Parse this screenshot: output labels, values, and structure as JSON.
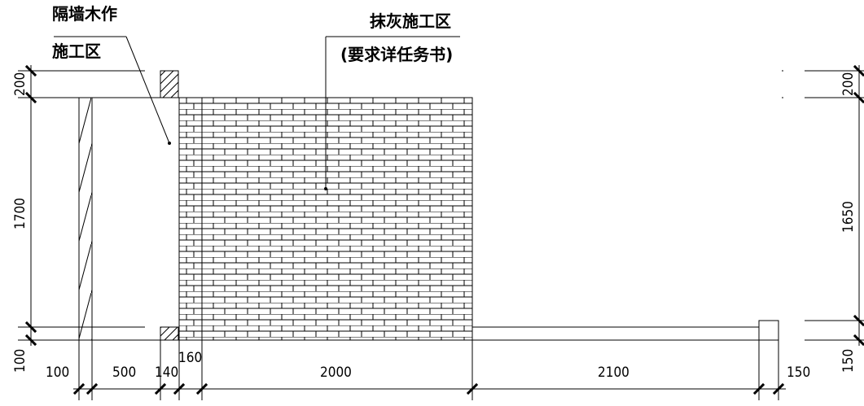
{
  "labels": {
    "partition_line1": "隔墙木作",
    "partition_line2": "施工区",
    "plaster_line1": "抹灰施工区",
    "plaster_line2": "(要求详任务书)"
  },
  "dimensions": {
    "bottom": [
      "100",
      "500",
      "140",
      "160",
      "2000",
      "2100",
      "150"
    ],
    "left": [
      "200",
      "1700",
      "100"
    ],
    "right": [
      "200",
      "1650",
      "150"
    ]
  },
  "colors": {
    "line": "#000000",
    "background": "#ffffff"
  }
}
